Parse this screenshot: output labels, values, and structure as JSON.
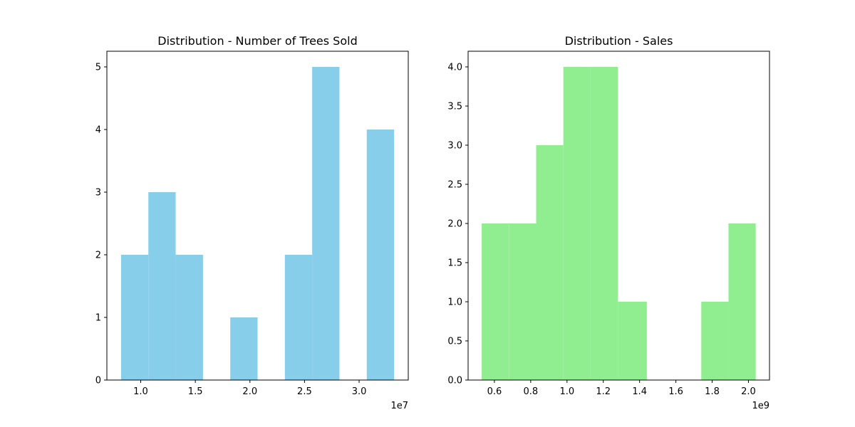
{
  "chart_data": [
    {
      "type": "bar",
      "subtype": "histogram",
      "title": "Distribution - Number of Trees Sold",
      "xlabel": "",
      "ylabel": "",
      "x_offset_label": "1e7",
      "color": "#87CEEB",
      "bin_edges": [
        8.2,
        10.7,
        13.2,
        15.7,
        18.2,
        20.7,
        23.2,
        25.7,
        28.2,
        30.7,
        33.2
      ],
      "values": [
        2,
        3,
        2,
        0,
        1,
        0,
        2,
        5,
        0,
        4
      ],
      "xlim": [
        6.9,
        34.5
      ],
      "ylim": [
        0,
        5.25
      ],
      "xticks": [
        10,
        15,
        20,
        25,
        30
      ],
      "xtick_labels": [
        "1.0",
        "1.5",
        "2.0",
        "2.5",
        "3.0"
      ],
      "yticks": [
        0,
        1,
        2,
        3,
        4,
        5
      ],
      "ytick_labels": [
        "0",
        "1",
        "2",
        "3",
        "4",
        "5"
      ],
      "grid": false,
      "legend": "none"
    },
    {
      "type": "bar",
      "subtype": "histogram",
      "title": "Distribution - Sales",
      "xlabel": "",
      "ylabel": "",
      "x_offset_label": "1e9",
      "color": "#90EE90",
      "bin_edges": [
        0.53,
        0.68,
        0.83,
        0.98,
        1.13,
        1.28,
        1.44,
        1.59,
        1.74,
        1.89,
        2.04
      ],
      "values": [
        2,
        2,
        3,
        4,
        4,
        1,
        0,
        0,
        1,
        2
      ],
      "xlim": [
        0.455,
        2.116
      ],
      "ylim": [
        0,
        4.2
      ],
      "xticks": [
        0.6,
        0.8,
        1.0,
        1.2,
        1.4,
        1.6,
        1.8,
        2.0
      ],
      "xtick_labels": [
        "0.6",
        "0.8",
        "1.0",
        "1.2",
        "1.4",
        "1.6",
        "1.8",
        "2.0"
      ],
      "yticks": [
        0,
        0.5,
        1,
        1.5,
        2,
        2.5,
        3,
        3.5,
        4
      ],
      "ytick_labels": [
        "0.0",
        "0.5",
        "1.0",
        "1.5",
        "2.0",
        "2.5",
        "3.0",
        "3.5",
        "4.0"
      ],
      "grid": false,
      "legend": "none"
    }
  ]
}
